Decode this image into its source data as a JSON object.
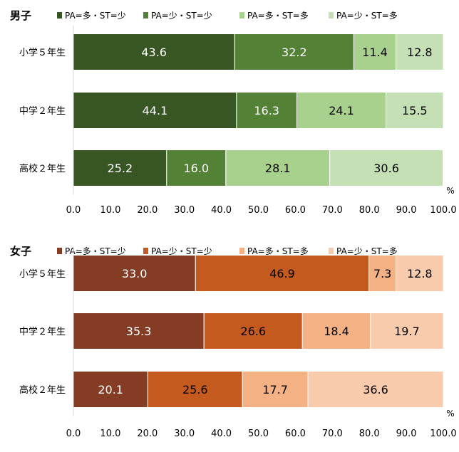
{
  "chart_data": [
    {
      "type": "bar",
      "orientation": "horizontal",
      "stacked": true,
      "title": "男子",
      "categories": [
        "小学５年生",
        "中学２年生",
        "高校２年生"
      ],
      "series": [
        {
          "name": "PA=多・ST=少",
          "color": "#375623",
          "values": [
            43.6,
            44.1,
            25.2
          ]
        },
        {
          "name": "PA=少・ST=少",
          "color": "#538135",
          "values": [
            32.2,
            16.3,
            16.0
          ]
        },
        {
          "name": "PA=多・ST=多",
          "color": "#A9D18E",
          "values": [
            11.4,
            24.1,
            28.1
          ]
        },
        {
          "name": "PA=少・ST=多",
          "color": "#C5E0B4",
          "values": [
            12.8,
            15.5,
            30.6
          ]
        }
      ],
      "xlim": [
        0,
        100
      ],
      "xticks": [
        "0.0",
        "10.0",
        "20.0",
        "30.0",
        "40.0",
        "50.0",
        "60.0",
        "70.0",
        "80.0",
        "90.0",
        "100.0"
      ],
      "unit": "%",
      "legend": "top",
      "grid": false
    },
    {
      "type": "bar",
      "orientation": "horizontal",
      "stacked": true,
      "title": "女子",
      "categories": [
        "小学５年生",
        "中学２年生",
        "高校２年生"
      ],
      "series": [
        {
          "name": "PA=多・ST=少",
          "color": "#843C24",
          "values": [
            33.0,
            35.3,
            20.1
          ]
        },
        {
          "name": "PA=少・ST=少",
          "color": "#C55A1E",
          "values": [
            46.9,
            26.6,
            25.6
          ]
        },
        {
          "name": "PA=多・ST=多",
          "color": "#F4B183",
          "values": [
            7.3,
            18.4,
            17.7
          ]
        },
        {
          "name": "PA=少・ST=多",
          "color": "#F8CBAD",
          "values": [
            12.8,
            19.7,
            36.6
          ]
        }
      ],
      "xlim": [
        0,
        100
      ],
      "xticks": [
        "0.0",
        "10.0",
        "20.0",
        "30.0",
        "40.0",
        "50.0",
        "60.0",
        "70.0",
        "80.0",
        "90.0",
        "100.0"
      ],
      "unit": "%",
      "legend": "top",
      "grid": false
    }
  ]
}
